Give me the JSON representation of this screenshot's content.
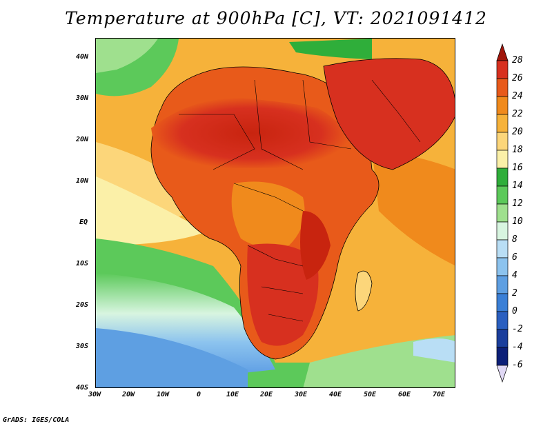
{
  "title": "Temperature at 900hPa [C], VT: 2021091412",
  "credit": "GrADS: IGES/COLA",
  "map": {
    "lat_labels": [
      "40N",
      "30N",
      "20N",
      "10N",
      "EQ",
      "10S",
      "20S",
      "30S",
      "40S"
    ],
    "lon_labels": [
      "30W",
      "20W",
      "10W",
      "0",
      "10E",
      "20E",
      "30E",
      "40E",
      "50E",
      "60E",
      "70E"
    ]
  },
  "colorbar": {
    "levels": [
      "28",
      "26",
      "24",
      "22",
      "20",
      "18",
      "16",
      "14",
      "12",
      "10",
      "8",
      "6",
      "4",
      "2",
      "0",
      "-2",
      "-4",
      "-6"
    ],
    "colors": [
      "#a0150a",
      "#d7301f",
      "#e85a1a",
      "#f08a1c",
      "#f6b23a",
      "#fcd67a",
      "#fbf0a8",
      "#2fae3a",
      "#5cc95a",
      "#9fe08e",
      "#d8f5e0",
      "#b9def5",
      "#8cc3ee",
      "#5e9fe2",
      "#3a7fd6",
      "#2a5fc0",
      "#1a3e9c",
      "#0c1f78",
      "#e0d8f5"
    ]
  }
}
